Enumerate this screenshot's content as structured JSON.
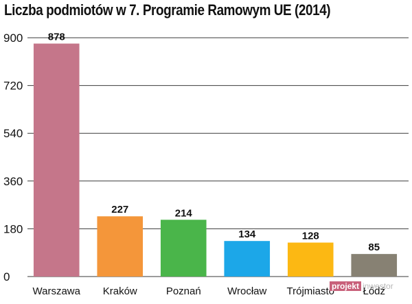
{
  "watermark": {
    "part1": "projekt",
    "part2": "inwestor"
  },
  "chart_data": {
    "type": "bar",
    "title": "Liczba podmiotów w 7. Programie Ramowym UE (2014)",
    "xlabel": "",
    "ylabel": "",
    "categories": [
      "Warszawa",
      "Kraków",
      "Poznań",
      "Wrocław",
      "Trójmiasto",
      "Łódź"
    ],
    "values": [
      878,
      227,
      214,
      134,
      128,
      85
    ],
    "colors": [
      "#c5768a",
      "#f4963a",
      "#4ab54a",
      "#1ca7e8",
      "#fcb813",
      "#878173"
    ],
    "ylim": [
      0,
      900
    ],
    "yticks": [
      0,
      180,
      360,
      540,
      720,
      900
    ],
    "grid": true,
    "legend": "none"
  }
}
